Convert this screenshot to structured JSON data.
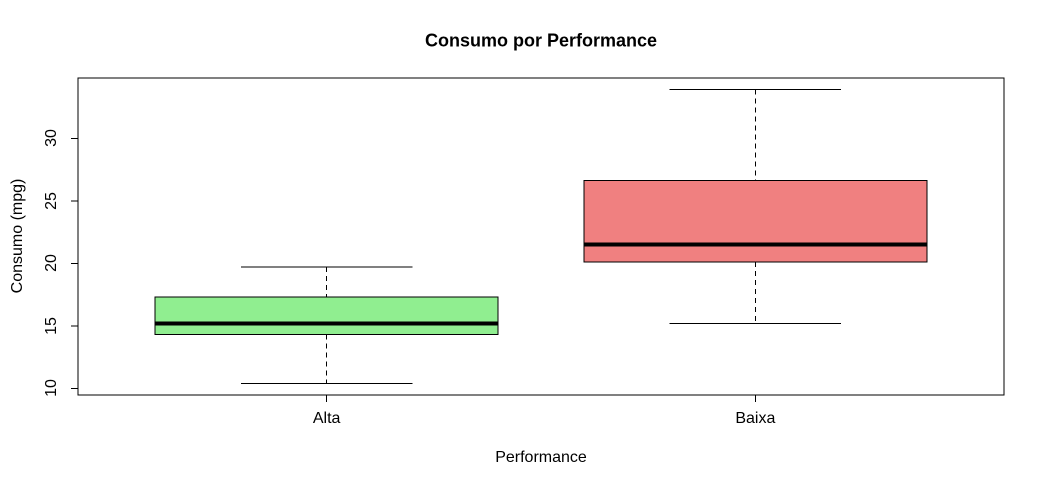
{
  "chart_data": {
    "type": "boxplot",
    "title": "Consumo por Performance",
    "xlabel": "Performance",
    "ylabel": "Consumo (mpg)",
    "categories": [
      "Alta",
      "Baixa"
    ],
    "y_ticks": [
      "10",
      "15",
      "20",
      "25",
      "30"
    ],
    "ylim": [
      9.46,
      34.84
    ],
    "grid": false,
    "legend": null,
    "line_color": "#000000",
    "background_color": "#ffffff",
    "whisker_style": "dashed",
    "series": [
      {
        "name": "Alta",
        "fill_color": "#90EE90",
        "whisker_low": 10.4,
        "q1": 14.3,
        "median": 15.2,
        "q3": 17.3,
        "whisker_high": 19.7
      },
      {
        "name": "Baixa",
        "fill_color": "#F08080",
        "whisker_low": 15.2,
        "q1": 20.1,
        "median": 21.5,
        "q3": 26.65,
        "whisker_high": 33.9
      }
    ]
  }
}
